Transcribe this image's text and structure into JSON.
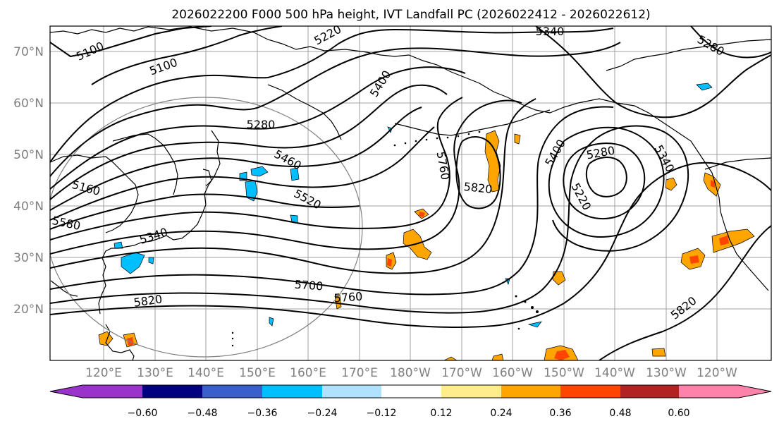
{
  "title": "2026022200 F000 500 hPa height, IVT Landfall PC (2026022412 - 2026022612)",
  "lat_ticks": [
    "70°N",
    "60°N",
    "50°N",
    "40°N",
    "30°N",
    "20°N"
  ],
  "lon_ticks": [
    "120°E",
    "130°E",
    "140°E",
    "150°E",
    "160°E",
    "170°E",
    "180°W",
    "170°W",
    "160°W",
    "150°W",
    "140°W",
    "130°W",
    "120°W"
  ],
  "contour_labels": [
    "5340",
    "5220",
    "5100",
    "5100",
    "5400",
    "5280",
    "5280",
    "5460",
    "5160",
    "5520",
    "5580",
    "5340",
    "5760",
    "5820",
    "5400",
    "5280",
    "5340",
    "5220",
    "5700",
    "5760",
    "5820",
    "5820"
  ],
  "colorbar": {
    "ticks": [
      "−0.60",
      "−0.48",
      "−0.36",
      "−0.24",
      "−0.12",
      "0.12",
      "0.24",
      "0.36",
      "0.48",
      "0.60"
    ],
    "colors": [
      "#9933cc",
      "#000080",
      "#3a5fcd",
      "#00bfff",
      "#b0e2ff",
      "#ffffff",
      "#ffec8b",
      "#ffa500",
      "#ff4500",
      "#b22222",
      "#ff82ab"
    ]
  },
  "colors": {
    "land": "#000000",
    "grid": "#a0a0a0",
    "positive": "#ffa500",
    "negative": "#00bfff"
  }
}
